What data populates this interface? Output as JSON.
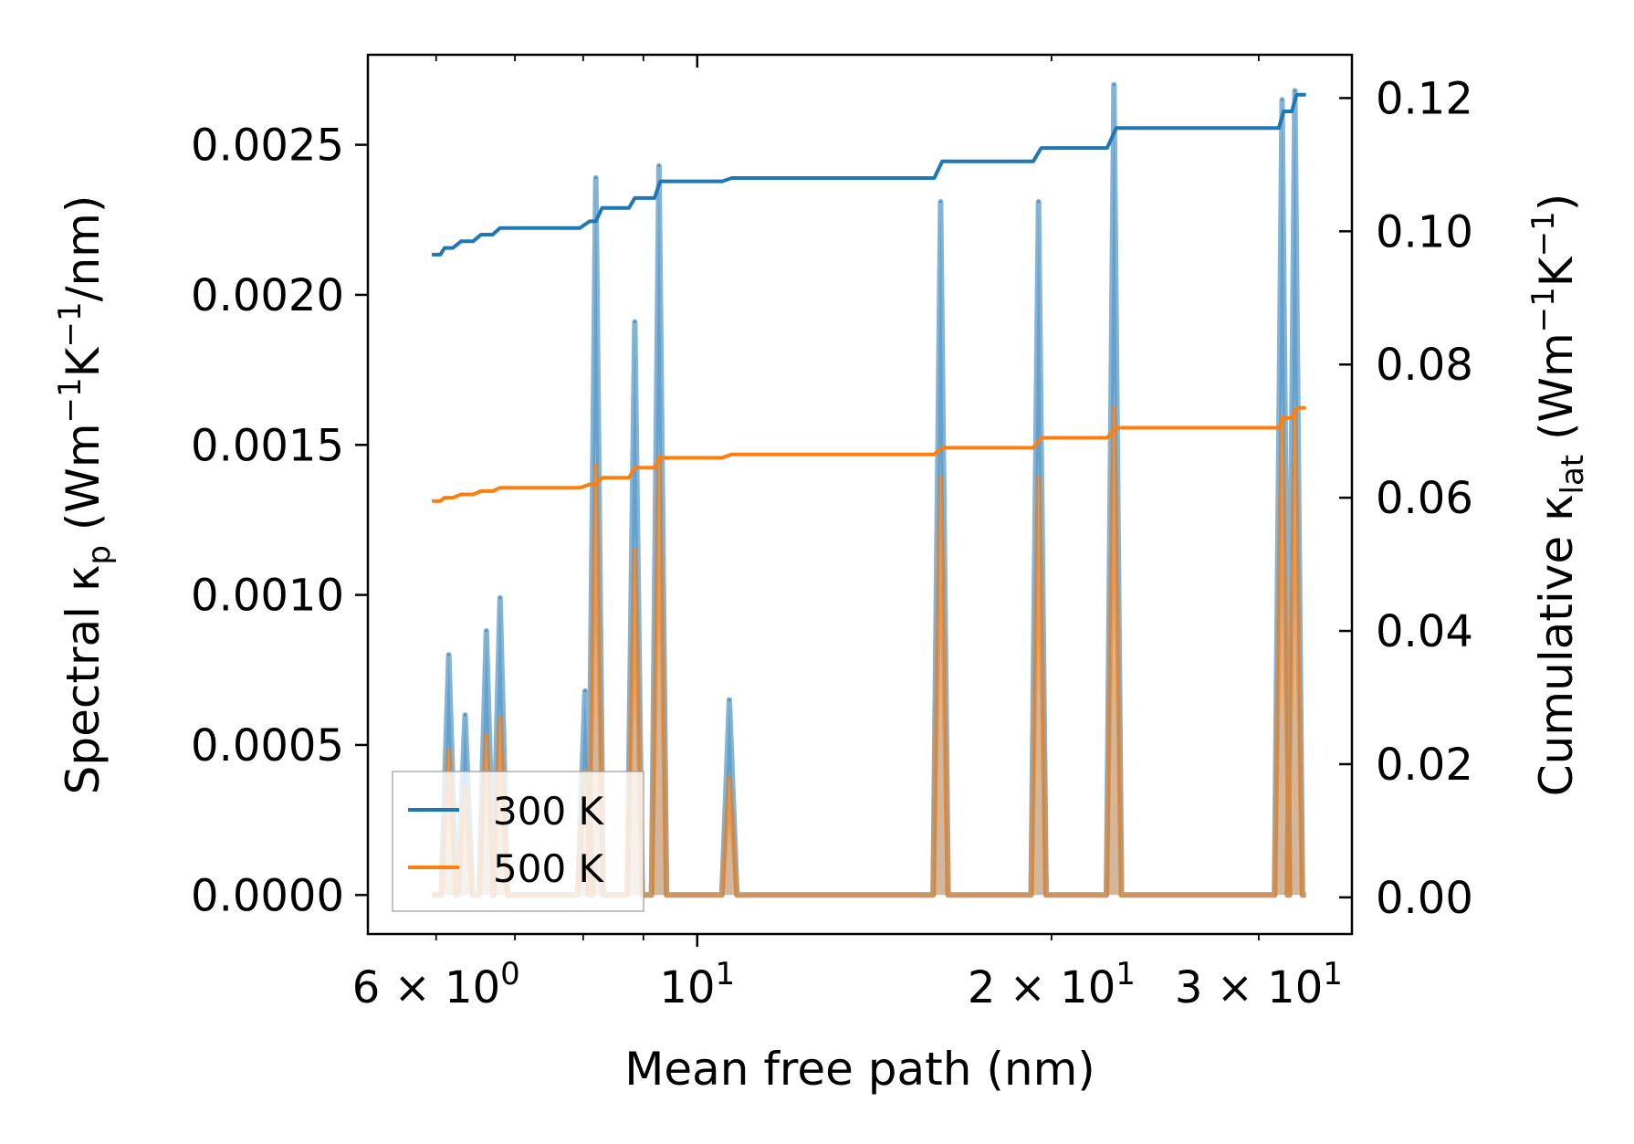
{
  "chart_data": {
    "type": "line",
    "xscale": "log",
    "xlabel": "Mean free path (nm)",
    "ylabel_left": {
      "main": "Spectral ",
      "kappa": "κ",
      "sub": "p",
      "units_pre": " (Wm",
      "sup1": "−1",
      "units_mid": "K",
      "sup2": "−1",
      "units_post": "/nm)"
    },
    "ylabel_right": {
      "main": "Cumulative ",
      "kappa": "κ",
      "sub": "lat",
      "units_pre": " (Wm",
      "sup1": "−1",
      "units_mid": "K",
      "sup2": "−1",
      "units_post": ")"
    },
    "xlim": [
      5.25,
      36.0
    ],
    "ylim_left": [
      -0.00013,
      0.0028
    ],
    "ylim_right": [
      -0.0055,
      0.1265
    ],
    "x_ticks": [
      {
        "value": 6,
        "base": "6 × 10",
        "exp": "0"
      },
      {
        "value": 10,
        "base": "10",
        "exp": "1"
      },
      {
        "value": 20,
        "base": "2 × 10",
        "exp": "1"
      },
      {
        "value": 30,
        "base": "3 × 10",
        "exp": "1"
      }
    ],
    "y_ticks_left": [
      "0.0000",
      "0.0005",
      "0.0010",
      "0.0015",
      "0.0020",
      "0.0025"
    ],
    "y_ticks_right": [
      "0.00",
      "0.02",
      "0.04",
      "0.06",
      "0.08",
      "0.10",
      "0.12"
    ],
    "spectral_series": [
      {
        "name": "300 K",
        "color": "#1f77b4",
        "peaks": [
          [
            6.15,
            0.0008
          ],
          [
            6.35,
            0.0006
          ],
          [
            6.62,
            0.00088
          ],
          [
            6.8,
            0.00099
          ],
          [
            8.03,
            0.00068
          ],
          [
            8.2,
            0.00239
          ],
          [
            8.85,
            0.00191
          ],
          [
            9.28,
            0.00243
          ],
          [
            10.65,
            0.00065
          ],
          [
            16.1,
            0.00231
          ],
          [
            19.5,
            0.00231
          ],
          [
            22.6,
            0.0027
          ],
          [
            31.4,
            0.00265
          ],
          [
            32.2,
            0.00268
          ]
        ]
      },
      {
        "name": "500 K",
        "color": "#ff7f0e",
        "peaks": [
          [
            6.15,
            0.00048
          ],
          [
            6.35,
            0.00036
          ],
          [
            6.62,
            0.00053
          ],
          [
            6.8,
            0.00059
          ],
          [
            8.03,
            0.00041
          ],
          [
            8.2,
            0.00143
          ],
          [
            8.85,
            0.00115
          ],
          [
            9.28,
            0.00146
          ],
          [
            10.65,
            0.00039
          ],
          [
            16.1,
            0.00139
          ],
          [
            19.5,
            0.00139
          ],
          [
            22.6,
            0.00162
          ],
          [
            31.4,
            0.00159
          ],
          [
            32.2,
            0.00161
          ]
        ]
      }
    ],
    "cumulative_series": [
      {
        "name": "300 K",
        "color": "#1f77b4",
        "points": [
          [
            5.95,
            0.0965
          ],
          [
            6.05,
            0.0965
          ],
          [
            6.1,
            0.0975
          ],
          [
            6.2,
            0.0975
          ],
          [
            6.3,
            0.0985
          ],
          [
            6.45,
            0.0985
          ],
          [
            6.55,
            0.0995
          ],
          [
            6.7,
            0.0995
          ],
          [
            6.8,
            0.1005
          ],
          [
            7.95,
            0.1005
          ],
          [
            8.1,
            0.1015
          ],
          [
            8.2,
            0.1015
          ],
          [
            8.3,
            0.1035
          ],
          [
            8.75,
            0.1035
          ],
          [
            8.85,
            0.105
          ],
          [
            9.2,
            0.105
          ],
          [
            9.3,
            0.1075
          ],
          [
            10.5,
            0.1075
          ],
          [
            10.7,
            0.108
          ],
          [
            15.9,
            0.108
          ],
          [
            16.15,
            0.1105
          ],
          [
            19.3,
            0.1105
          ],
          [
            19.6,
            0.1125
          ],
          [
            22.3,
            0.1125
          ],
          [
            22.7,
            0.1155
          ],
          [
            31.2,
            0.1155
          ],
          [
            31.5,
            0.118
          ],
          [
            32.0,
            0.118
          ],
          [
            32.3,
            0.1205
          ],
          [
            32.9,
            0.1205
          ]
        ]
      },
      {
        "name": "500 K",
        "color": "#ff7f0e",
        "points": [
          [
            5.95,
            0.0595
          ],
          [
            6.05,
            0.0595
          ],
          [
            6.1,
            0.06
          ],
          [
            6.2,
            0.06
          ],
          [
            6.3,
            0.0605
          ],
          [
            6.45,
            0.0605
          ],
          [
            6.55,
            0.061
          ],
          [
            6.7,
            0.061
          ],
          [
            6.8,
            0.0615
          ],
          [
            7.95,
            0.0615
          ],
          [
            8.1,
            0.062
          ],
          [
            8.2,
            0.062
          ],
          [
            8.3,
            0.063
          ],
          [
            8.75,
            0.063
          ],
          [
            8.85,
            0.0645
          ],
          [
            9.2,
            0.0645
          ],
          [
            9.3,
            0.066
          ],
          [
            10.5,
            0.066
          ],
          [
            10.7,
            0.0665
          ],
          [
            15.9,
            0.0665
          ],
          [
            16.15,
            0.0675
          ],
          [
            19.3,
            0.0675
          ],
          [
            19.6,
            0.069
          ],
          [
            22.3,
            0.069
          ],
          [
            22.7,
            0.0705
          ],
          [
            31.2,
            0.0705
          ],
          [
            31.5,
            0.072
          ],
          [
            32.0,
            0.072
          ],
          [
            32.3,
            0.0735
          ],
          [
            32.9,
            0.0735
          ]
        ]
      }
    ],
    "legend": {
      "position": "lower-left",
      "entries": [
        "300 K",
        "500 K"
      ]
    }
  }
}
